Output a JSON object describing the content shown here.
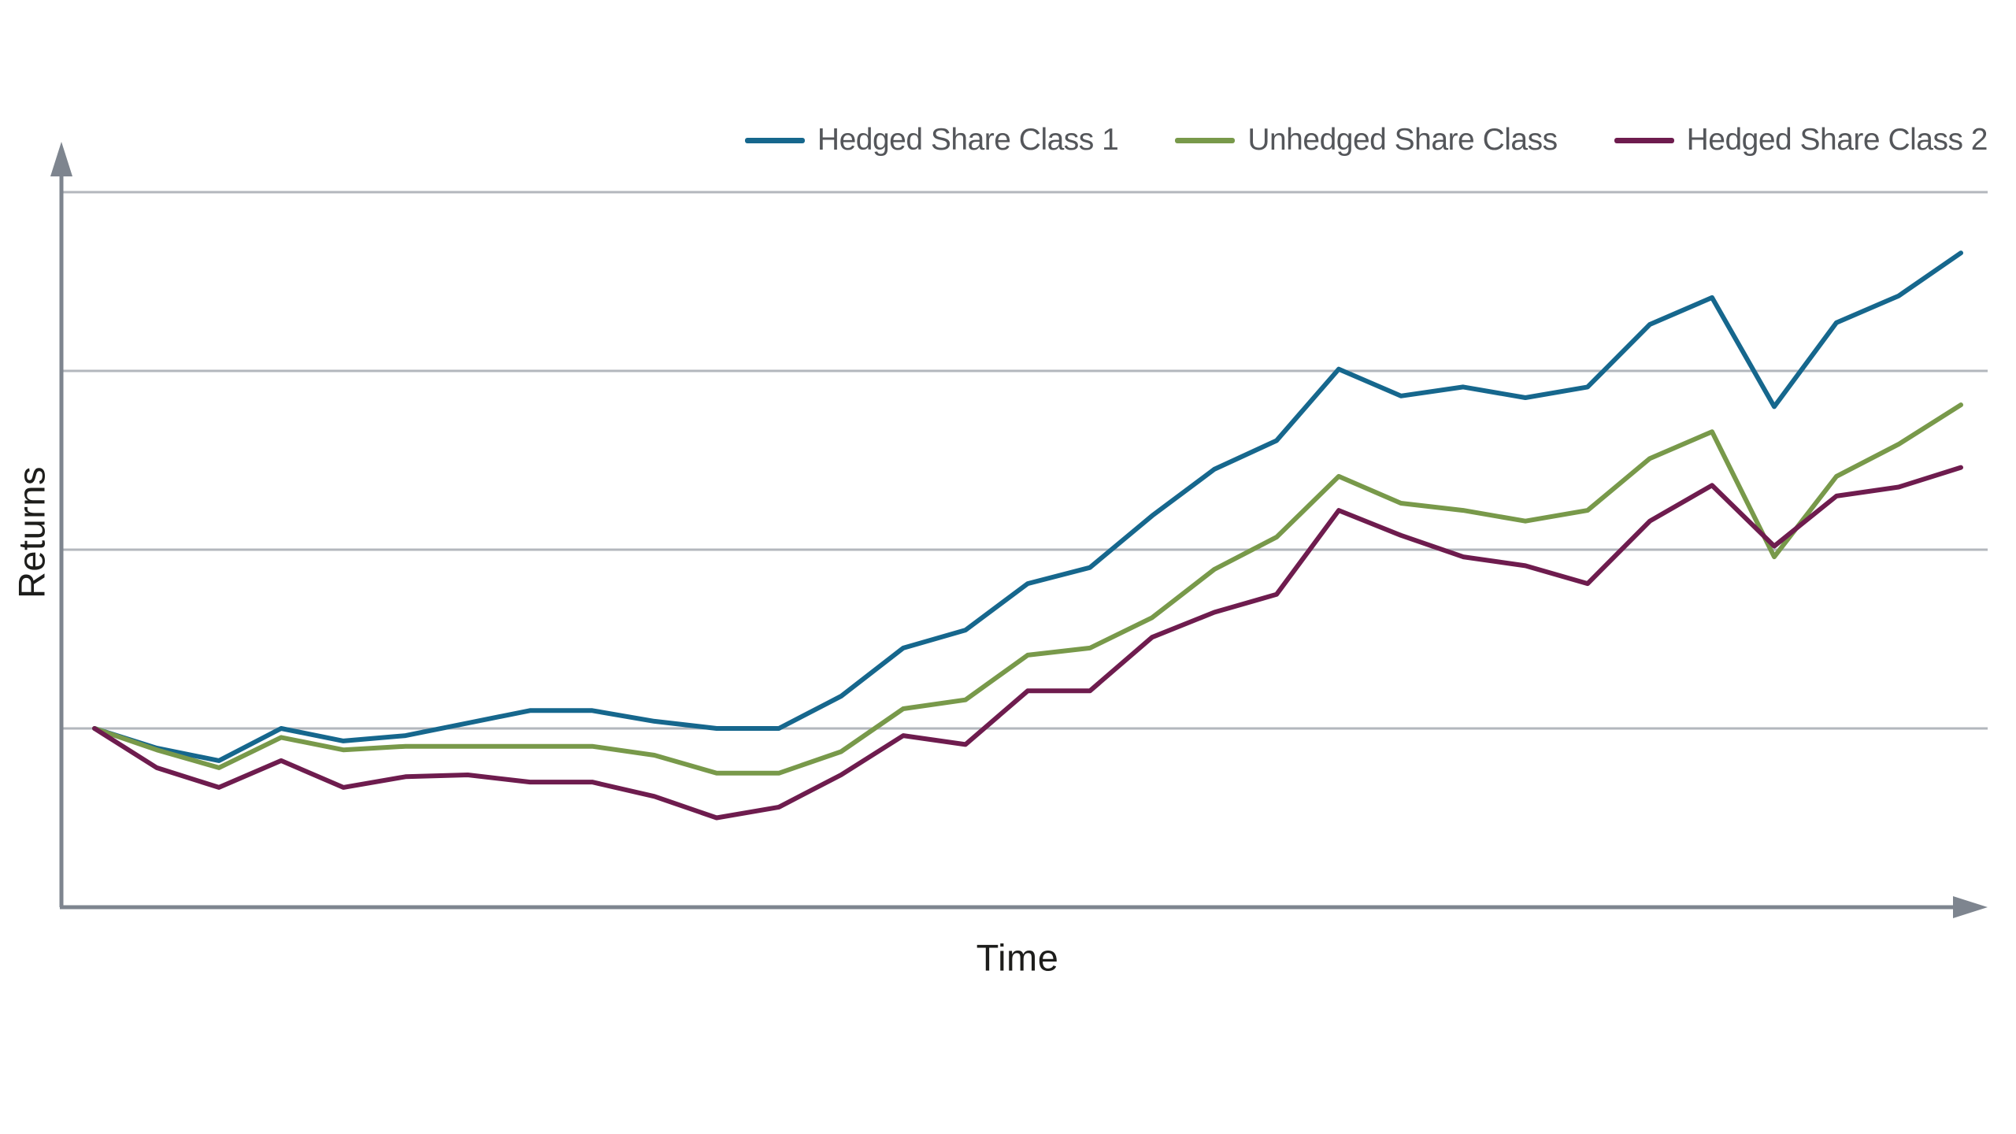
{
  "figure": {
    "background_color": "#ffffff",
    "axis_color": "#7e858f",
    "gridline_color": "#b3b7bd",
    "axis_title_color": "#1d1d1b",
    "legend_text_color": "#54565a"
  },
  "legend": {
    "position": "top-right",
    "items": [
      {
        "label": "Hedged Share Class 1",
        "color": "#16678d"
      },
      {
        "label": "Unhedged Share Class",
        "color": "#78994a"
      },
      {
        "label": "Hedged Share Class 2",
        "color": "#6e1c4e"
      }
    ]
  },
  "chart_data": {
    "type": "line",
    "title": "",
    "xlabel": "Time",
    "ylabel": "Returns",
    "x_tick_labels": [],
    "y_tick_labels": [],
    "grid": "horizontal gridlines only, no tick labels",
    "gridline_values": [
      3,
      2,
      1,
      0
    ],
    "ylim": [
      -1,
      3.3
    ],
    "x": [
      0,
      1,
      2,
      3,
      4,
      5,
      6,
      7,
      8,
      9,
      10,
      11,
      12,
      13,
      14,
      15,
      16,
      17,
      18,
      19,
      20,
      21,
      22,
      23,
      24,
      25,
      26,
      27,
      28,
      29,
      30
    ],
    "x_axis_note": "time index, unlabeled; all three series start at the same value (0) on the second gridline from the bottom",
    "legend_position": "top-right",
    "series": [
      {
        "name": "Hedged Share Class 1",
        "color": "#16678d",
        "values": [
          0.0,
          -0.11,
          -0.18,
          0.0,
          -0.07,
          -0.04,
          0.03,
          0.1,
          0.1,
          0.04,
          0.0,
          0.0,
          0.18,
          0.45,
          0.55,
          0.81,
          0.9,
          1.19,
          1.45,
          1.61,
          2.01,
          1.86,
          1.91,
          1.85,
          1.91,
          2.26,
          2.41,
          1.8,
          2.27,
          2.42,
          2.66
        ]
      },
      {
        "name": "Unhedged Share Class",
        "color": "#78994a",
        "values": [
          0.0,
          -0.12,
          -0.22,
          -0.05,
          -0.12,
          -0.1,
          -0.1,
          -0.1,
          -0.1,
          -0.15,
          -0.25,
          -0.25,
          -0.13,
          0.11,
          0.16,
          0.41,
          0.45,
          0.62,
          0.89,
          1.07,
          1.41,
          1.26,
          1.22,
          1.16,
          1.22,
          1.51,
          1.66,
          0.96,
          1.41,
          1.59,
          1.81
        ]
      },
      {
        "name": "Hedged Share Class 2",
        "color": "#6e1c4e",
        "values": [
          0.0,
          -0.22,
          -0.33,
          -0.18,
          -0.33,
          -0.27,
          -0.26,
          -0.3,
          -0.3,
          -0.38,
          -0.5,
          -0.44,
          -0.26,
          -0.04,
          -0.09,
          0.21,
          0.21,
          0.51,
          0.65,
          0.75,
          1.22,
          1.08,
          0.96,
          0.91,
          0.81,
          1.16,
          1.36,
          1.02,
          1.3,
          1.35,
          1.46
        ]
      }
    ]
  }
}
